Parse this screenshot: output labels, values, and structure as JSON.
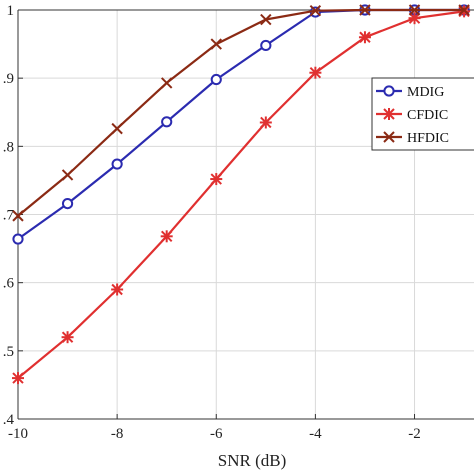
{
  "chart_data": {
    "type": "line",
    "title": "",
    "xlabel": "SNR (dB)",
    "ylabel": "",
    "xlim": [
      -10,
      -0.8
    ],
    "ylim": [
      0.4,
      1.0
    ],
    "grid": true,
    "legend_position": "right",
    "x_ticks": [
      -10,
      -8,
      -6,
      -4,
      -2
    ],
    "x_tick_labels": [
      "-10",
      "-8",
      "-6",
      "-4",
      "-2"
    ],
    "y_ticks": [
      1.0,
      0.9,
      0.8,
      0.7,
      0.6,
      0.5,
      0.4
    ],
    "y_tick_labels": [
      "1",
      ".9",
      ".8",
      ".7",
      ".6",
      ".5",
      ".4"
    ],
    "x": [
      -10,
      -9,
      -8,
      -7,
      -6,
      -5,
      -4,
      -3,
      -2,
      -1
    ],
    "series": [
      {
        "name": "MDIG",
        "color": "#2b2bb0",
        "marker": "circle",
        "values": [
          0.664,
          0.716,
          0.774,
          0.836,
          0.898,
          0.948,
          0.997,
          1.0,
          1.0,
          1.0
        ]
      },
      {
        "name": "CFDIC",
        "color": "#e03030",
        "marker": "star",
        "values": [
          0.46,
          0.52,
          0.59,
          0.668,
          0.752,
          0.835,
          0.908,
          0.96,
          0.988,
          0.998
        ]
      },
      {
        "name": "HFDIC",
        "color": "#8b2a14",
        "marker": "x",
        "values": [
          0.698,
          0.758,
          0.826,
          0.893,
          0.95,
          0.986,
          0.999,
          1.0,
          1.0,
          1.0
        ]
      }
    ]
  }
}
